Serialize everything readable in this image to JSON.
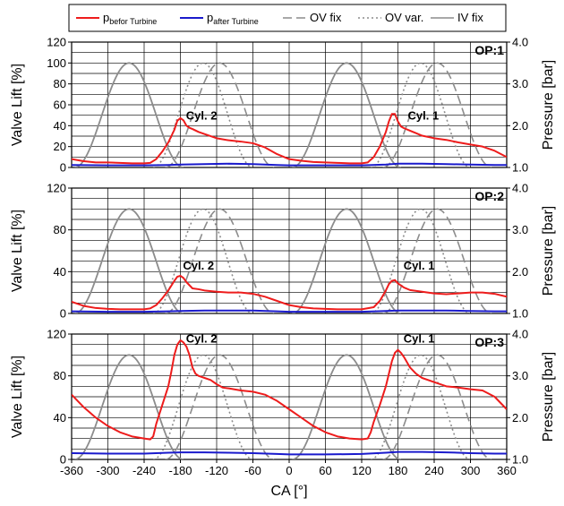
{
  "chart_data": {
    "type": "line",
    "xlabel": "CA [°]",
    "ylabel_left": "Valve Lift [%]",
    "ylabel_right": "Pressure [bar]",
    "xlim": [
      -360,
      360
    ],
    "ylim_left": [
      0,
      120
    ],
    "ylim_right": [
      1.0,
      4.0
    ],
    "x_ticks": [
      -360,
      -300,
      -240,
      -180,
      -120,
      -60,
      0,
      60,
      120,
      180,
      240,
      300,
      360
    ],
    "x_tick_labels": [
      "-360",
      "-300",
      "-240",
      "-180",
      "-120",
      "-60",
      "0",
      "60",
      "120",
      "180",
      "240",
      "300",
      "360"
    ],
    "grid": true,
    "legend": {
      "placement": "top",
      "entries": [
        {
          "key": "p_before",
          "label": "p",
          "sub": "befor Turbine",
          "color": "#ee1c1c",
          "dash": "solid"
        },
        {
          "key": "p_after",
          "label": "p",
          "sub": "after Turbine",
          "color": "#1a1acc",
          "dash": "solid"
        },
        {
          "key": "ov_fix",
          "label": "OV fix",
          "color": "#8c8c8c",
          "dash": "long-dash"
        },
        {
          "key": "ov_var",
          "label": "OV var.",
          "color": "#8c8c8c",
          "dash": "dotted"
        },
        {
          "key": "iv_fix",
          "label": "IV fix",
          "color": "#8c8c8c",
          "dash": "solid"
        }
      ]
    },
    "valve_curves": {
      "iv_fix": [
        {
          "start": -355,
          "end": -175,
          "peak": 100
        },
        {
          "start": 5,
          "end": 185,
          "peak": 100
        }
      ],
      "ov_fix": [
        {
          "start": -205,
          "end": -25,
          "peak": 100
        },
        {
          "start": 155,
          "end": 335,
          "peak": 100
        }
      ],
      "ov_var": [
        {
          "start": -225,
          "end": -60,
          "peak": 100
        },
        {
          "start": 135,
          "end": 300,
          "peak": 100
        }
      ]
    },
    "panels": [
      {
        "op_label": "OP:1",
        "left_ticks": [
          "0",
          "20",
          "40",
          "60",
          "80",
          "100",
          "120"
        ],
        "right_ticks": [
          "1.0",
          "2.0",
          "3.0",
          "4.0"
        ],
        "annotations": [
          {
            "text": "Cyl. 2",
            "x": -145,
            "y": 46
          },
          {
            "text": "Cyl. 1",
            "x": 222,
            "y": 46
          }
        ],
        "p_before": {
          "x": [
            -360,
            -340,
            -320,
            -300,
            -280,
            -260,
            -240,
            -230,
            -220,
            -210,
            -200,
            -190,
            -185,
            -180,
            -175,
            -170,
            -165,
            -160,
            -150,
            -140,
            -120,
            -100,
            -80,
            -60,
            -40,
            -20,
            0,
            20,
            40,
            60,
            80,
            100,
            120,
            130,
            140,
            150,
            160,
            165,
            170,
            175,
            180,
            185,
            190,
            200,
            210,
            220,
            240,
            260,
            280,
            300,
            320,
            340,
            360
          ],
          "y": [
            1.2,
            1.15,
            1.12,
            1.12,
            1.11,
            1.1,
            1.1,
            1.11,
            1.2,
            1.38,
            1.6,
            1.9,
            2.12,
            2.18,
            2.13,
            2.0,
            1.95,
            1.92,
            1.85,
            1.8,
            1.7,
            1.65,
            1.62,
            1.58,
            1.48,
            1.32,
            1.2,
            1.16,
            1.13,
            1.12,
            1.11,
            1.1,
            1.1,
            1.12,
            1.25,
            1.5,
            1.85,
            2.1,
            2.28,
            2.28,
            2.1,
            1.98,
            1.94,
            1.88,
            1.82,
            1.76,
            1.7,
            1.66,
            1.6,
            1.55,
            1.5,
            1.4,
            1.25
          ]
        },
        "p_after": {
          "x": [
            -360,
            -300,
            -240,
            -200,
            -180,
            -140,
            -100,
            -60,
            -20,
            0,
            60,
            120,
            160,
            180,
            220,
            260,
            300,
            340,
            360
          ],
          "y": [
            1.06,
            1.05,
            1.05,
            1.06,
            1.07,
            1.08,
            1.09,
            1.08,
            1.06,
            1.05,
            1.05,
            1.05,
            1.07,
            1.09,
            1.09,
            1.08,
            1.07,
            1.06,
            1.06
          ]
        }
      },
      {
        "op_label": "OP:2",
        "left_ticks": [
          "0",
          "40",
          "80",
          "120"
        ],
        "right_ticks": [
          "1.0",
          "2.0",
          "3.0",
          "4.0"
        ],
        "annotations": [
          {
            "text": "Cyl. 2",
            "x": -150,
            "y": 42
          },
          {
            "text": "Cyl. 1",
            "x": 215,
            "y": 42
          }
        ],
        "p_before": {
          "x": [
            -360,
            -340,
            -320,
            -300,
            -280,
            -260,
            -240,
            -230,
            -220,
            -210,
            -200,
            -190,
            -185,
            -180,
            -175,
            -170,
            -160,
            -150,
            -140,
            -120,
            -100,
            -80,
            -60,
            -40,
            -20,
            0,
            20,
            40,
            60,
            80,
            100,
            120,
            140,
            150,
            160,
            165,
            170,
            175,
            180,
            190,
            200,
            220,
            240,
            260,
            280,
            300,
            320,
            340,
            360
          ],
          "y": [
            1.28,
            1.18,
            1.13,
            1.11,
            1.1,
            1.1,
            1.1,
            1.12,
            1.2,
            1.36,
            1.55,
            1.78,
            1.88,
            1.9,
            1.85,
            1.75,
            1.6,
            1.58,
            1.55,
            1.52,
            1.5,
            1.5,
            1.47,
            1.4,
            1.3,
            1.2,
            1.15,
            1.12,
            1.11,
            1.1,
            1.1,
            1.1,
            1.15,
            1.3,
            1.55,
            1.7,
            1.78,
            1.8,
            1.72,
            1.62,
            1.56,
            1.52,
            1.48,
            1.46,
            1.48,
            1.5,
            1.5,
            1.47,
            1.4
          ]
        },
        "p_after": {
          "x": [
            -360,
            -300,
            -240,
            -200,
            -180,
            -140,
            -100,
            -60,
            -20,
            0,
            60,
            120,
            160,
            180,
            220,
            260,
            300,
            340,
            360
          ],
          "y": [
            1.05,
            1.04,
            1.04,
            1.05,
            1.06,
            1.07,
            1.07,
            1.07,
            1.05,
            1.04,
            1.04,
            1.04,
            1.06,
            1.07,
            1.07,
            1.07,
            1.06,
            1.05,
            1.05
          ]
        }
      },
      {
        "op_label": "OP:3",
        "left_ticks": [
          "0",
          "40",
          "80",
          "120"
        ],
        "right_ticks": [
          "1.0",
          "2.0",
          "3.0",
          "4.0"
        ],
        "annotations": [
          {
            "text": "Cyl. 2",
            "x": -145,
            "y": 112
          },
          {
            "text": "Cyl. 1",
            "x": 215,
            "y": 112
          }
        ],
        "p_before": {
          "x": [
            -360,
            -340,
            -320,
            -300,
            -280,
            -260,
            -240,
            -230,
            -225,
            -220,
            -210,
            -200,
            -195,
            -190,
            -185,
            -180,
            -175,
            -170,
            -165,
            -160,
            -155,
            -150,
            -140,
            -130,
            -120,
            -110,
            -100,
            -80,
            -60,
            -40,
            -20,
            0,
            20,
            40,
            60,
            80,
            100,
            120,
            130,
            135,
            140,
            150,
            160,
            165,
            170,
            175,
            180,
            185,
            190,
            200,
            210,
            220,
            240,
            260,
            280,
            300,
            320,
            340,
            360
          ],
          "y": [
            2.55,
            2.25,
            2.0,
            1.8,
            1.65,
            1.55,
            1.5,
            1.48,
            1.55,
            1.85,
            2.3,
            2.75,
            3.1,
            3.5,
            3.75,
            3.85,
            3.8,
            3.7,
            3.5,
            3.2,
            3.05,
            3.0,
            2.95,
            2.9,
            2.8,
            2.72,
            2.7,
            2.65,
            2.62,
            2.55,
            2.4,
            2.2,
            2.0,
            1.8,
            1.65,
            1.55,
            1.5,
            1.48,
            1.5,
            1.65,
            1.9,
            2.3,
            2.75,
            3.05,
            3.35,
            3.55,
            3.62,
            3.55,
            3.45,
            3.2,
            3.05,
            2.95,
            2.85,
            2.75,
            2.72,
            2.68,
            2.65,
            2.5,
            2.2
          ]
        },
        "p_after": {
          "x": [
            -360,
            -300,
            -240,
            -200,
            -180,
            -140,
            -100,
            -60,
            -20,
            0,
            60,
            120,
            160,
            180,
            220,
            260,
            300,
            340,
            360
          ],
          "y": [
            1.15,
            1.14,
            1.14,
            1.16,
            1.17,
            1.17,
            1.16,
            1.15,
            1.13,
            1.12,
            1.12,
            1.13,
            1.16,
            1.18,
            1.18,
            1.17,
            1.15,
            1.14,
            1.14
          ]
        }
      }
    ]
  }
}
